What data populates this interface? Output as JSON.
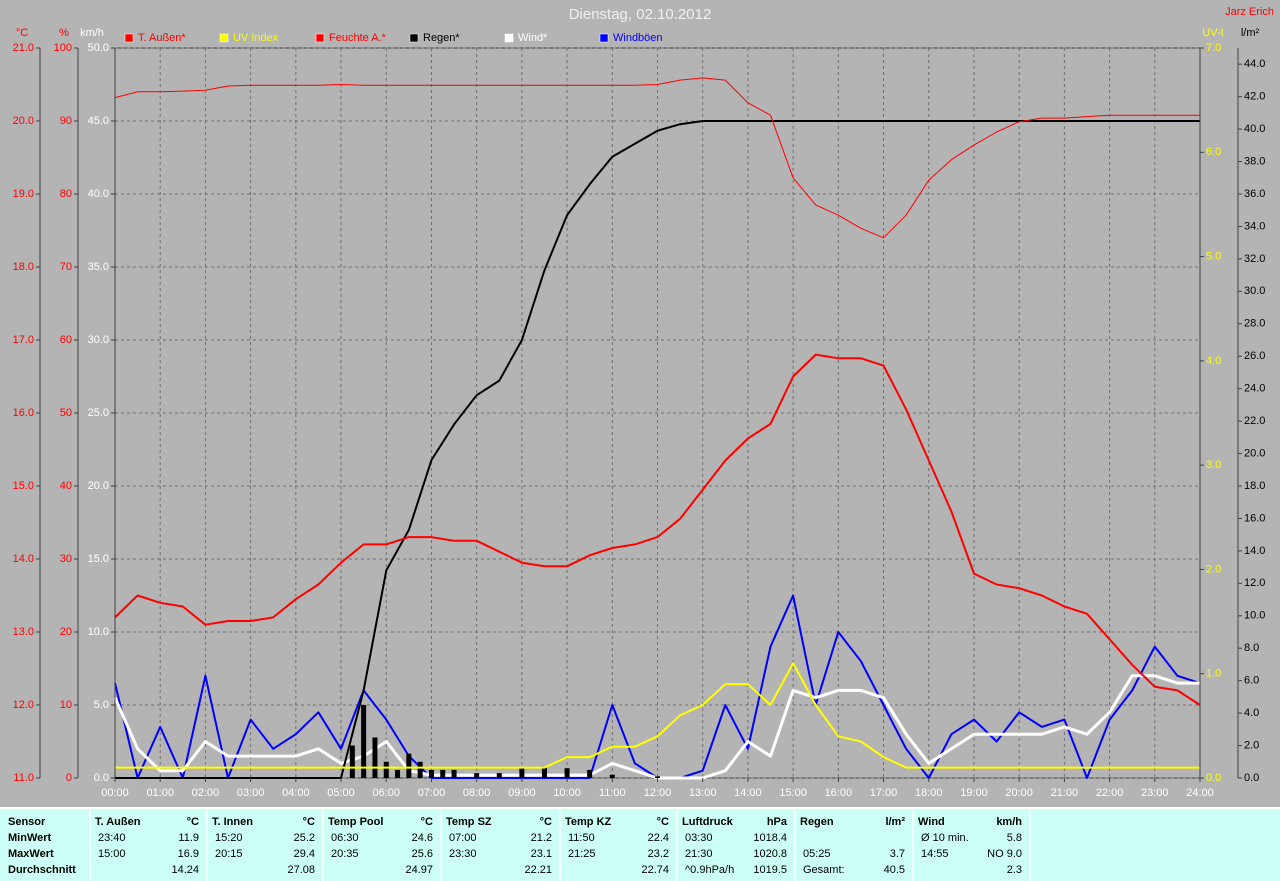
{
  "chart_data": {
    "type": "line",
    "title": "Dienstag, 02.10.2012",
    "author": "Jarz Erich",
    "x": [
      0,
      0.5,
      1,
      1.5,
      2,
      2.5,
      3,
      3.5,
      4,
      4.5,
      5,
      5.5,
      6,
      6.5,
      7,
      7.5,
      8,
      8.5,
      9,
      9.5,
      10,
      10.5,
      11,
      11.5,
      12,
      12.5,
      13,
      13.5,
      14,
      14.5,
      15,
      15.5,
      16,
      16.5,
      17,
      17.5,
      18,
      18.5,
      19,
      19.5,
      20,
      20.5,
      21,
      21.5,
      22,
      22.5,
      23,
      23.5,
      24
    ],
    "xlim": [
      0,
      24
    ],
    "xticks": [
      {
        "value": 0,
        "label": "00:00"
      },
      {
        "value": 1,
        "label": "01:00"
      },
      {
        "value": 2,
        "label": "02:00"
      },
      {
        "value": 3,
        "label": "03:00"
      },
      {
        "value": 4,
        "label": "04:00"
      },
      {
        "value": 5,
        "label": "05:00"
      },
      {
        "value": 6,
        "label": "06:00"
      },
      {
        "value": 7,
        "label": "07:00"
      },
      {
        "value": 8,
        "label": "08:00"
      },
      {
        "value": 9,
        "label": "09:00"
      },
      {
        "value": 10,
        "label": "10:00"
      },
      {
        "value": 11,
        "label": "11:00"
      },
      {
        "value": 12,
        "label": "12:00"
      },
      {
        "value": 13,
        "label": "13:00"
      },
      {
        "value": 14,
        "label": "14:00"
      },
      {
        "value": 15,
        "label": "15:00"
      },
      {
        "value": 16,
        "label": "16:00"
      },
      {
        "value": 17,
        "label": "17:00"
      },
      {
        "value": 18,
        "label": "18:00"
      },
      {
        "value": 19,
        "label": "19:00"
      },
      {
        "value": 20,
        "label": "20:00"
      },
      {
        "value": 21,
        "label": "21:00"
      },
      {
        "value": 22,
        "label": "22:00"
      },
      {
        "value": 23,
        "label": "23:00"
      },
      {
        "value": 24,
        "label": "24:00"
      }
    ],
    "grid": true,
    "axes": {
      "y": {
        "label": "°C",
        "color": "#ff0000",
        "lim": [
          11,
          21
        ],
        "ticks": [
          {
            "value": 11,
            "label": "11.0"
          },
          {
            "value": 12,
            "label": "12.0"
          },
          {
            "value": 13,
            "label": "13.0"
          },
          {
            "value": 14,
            "label": "14.0"
          },
          {
            "value": 15,
            "label": "15.0"
          },
          {
            "value": 16,
            "label": "16.0"
          },
          {
            "value": 17,
            "label": "17.0"
          },
          {
            "value": 18,
            "label": "18.0"
          },
          {
            "value": 19,
            "label": "19.0"
          },
          {
            "value": 20,
            "label": "20.0"
          },
          {
            "value": 21,
            "label": "21.0"
          }
        ]
      },
      "y2": {
        "label": "%",
        "color": "#ff0000",
        "lim": [
          0,
          100
        ],
        "ticks": [
          0,
          10,
          20,
          30,
          40,
          50,
          60,
          70,
          80,
          90,
          100
        ]
      },
      "y3": {
        "label": "km/h",
        "color": "#ffffff",
        "lim": [
          0,
          50
        ],
        "grid": true,
        "ticks": [
          {
            "value": 0,
            "label": "0.0"
          },
          {
            "value": 5,
            "label": "5.0"
          },
          {
            "value": 10,
            "label": "10.0"
          },
          {
            "value": 15,
            "label": "15.0"
          },
          {
            "value": 20,
            "label": "20.0"
          },
          {
            "value": 25,
            "label": "25.0"
          },
          {
            "value": 30,
            "label": "30.0"
          },
          {
            "value": 35,
            "label": "35.0"
          },
          {
            "value": 40,
            "label": "40.0"
          },
          {
            "value": 45,
            "label": "45.0"
          },
          {
            "value": 50,
            "label": "50.0"
          }
        ]
      },
      "y4": {
        "label": "UV-I",
        "color": "#ffff00",
        "lim": [
          0,
          7
        ],
        "ticks": [
          {
            "value": 0,
            "label": "0.0"
          },
          {
            "value": 1,
            "label": "1.0"
          },
          {
            "value": 2,
            "label": "2.0"
          },
          {
            "value": 3,
            "label": "3.0"
          },
          {
            "value": 4,
            "label": "4.0"
          },
          {
            "value": 5,
            "label": "5.0"
          },
          {
            "value": 6,
            "label": "6.0"
          },
          {
            "value": 7,
            "label": "7.0"
          }
        ]
      },
      "y5": {
        "label": "l/m²",
        "color": "#000000",
        "lim": [
          0,
          45
        ],
        "ticks": [
          {
            "value": 0,
            "label": "0.0"
          },
          {
            "value": 2,
            "label": "2.0"
          },
          {
            "value": 4,
            "label": "4.0"
          },
          {
            "value": 6,
            "label": "6.0"
          },
          {
            "value": 8,
            "label": "8.0"
          },
          {
            "value": 10,
            "label": "10.0"
          },
          {
            "value": 12,
            "label": "12.0"
          },
          {
            "value": 14,
            "label": "14.0"
          },
          {
            "value": 16,
            "label": "16.0"
          },
          {
            "value": 18,
            "label": "18.0"
          },
          {
            "value": 20,
            "label": "20.0"
          },
          {
            "value": 22,
            "label": "22.0"
          },
          {
            "value": 24,
            "label": "24.0"
          },
          {
            "value": 26,
            "label": "26.0"
          },
          {
            "value": 28,
            "label": "28.0"
          },
          {
            "value": 30,
            "label": "30.0"
          },
          {
            "value": 32,
            "label": "32.0"
          },
          {
            "value": 34,
            "label": "34.0"
          },
          {
            "value": 36,
            "label": "36.0"
          },
          {
            "value": 38,
            "label": "38.0"
          },
          {
            "value": 40,
            "label": "40.0"
          },
          {
            "value": 42,
            "label": "42.0"
          },
          {
            "value": 44,
            "label": "44.0"
          }
        ]
      }
    },
    "series": [
      {
        "name": "T. Außen*",
        "color": "#ff0000",
        "axis": "y",
        "width": 2,
        "values": [
          13.2,
          13.5,
          13.4,
          13.35,
          13.1,
          13.15,
          13.15,
          13.2,
          13.45,
          13.65,
          13.95,
          14.2,
          14.2,
          14.3,
          14.3,
          14.25,
          14.25,
          14.1,
          13.95,
          13.9,
          13.9,
          14.05,
          14.15,
          14.2,
          14.3,
          14.55,
          14.95,
          15.35,
          15.65,
          15.85,
          16.5,
          16.8,
          16.75,
          16.75,
          16.65,
          16.05,
          15.35,
          14.65,
          13.8,
          13.65,
          13.6,
          13.5,
          13.35,
          13.25,
          12.9,
          12.55,
          12.25,
          12.2,
          12.0
        ]
      },
      {
        "name": "UV Index",
        "color": "#ffff00",
        "axis": "y4",
        "width": 2,
        "values": [
          0.1,
          0.1,
          0.1,
          0.1,
          0.1,
          0.1,
          0.1,
          0.1,
          0.1,
          0.1,
          0.1,
          0.1,
          0.1,
          0.1,
          0.1,
          0.1,
          0.1,
          0.1,
          0.1,
          0.1,
          0.2,
          0.2,
          0.3,
          0.3,
          0.4,
          0.6,
          0.7,
          0.9,
          0.9,
          0.7,
          1.1,
          0.7,
          0.4,
          0.35,
          0.2,
          0.1,
          0.1,
          0.1,
          0.1,
          0.1,
          0.1,
          0.1,
          0.1,
          0.1,
          0.1,
          0.1,
          0.1,
          0.1,
          0.1
        ]
      },
      {
        "name": "Feuchte A.*",
        "color": "#ff0000",
        "axis": "y2",
        "width": 1,
        "values": [
          93.2,
          94,
          94,
          94.1,
          94.2,
          94.8,
          94.9,
          94.9,
          94.9,
          94.9,
          95.0,
          94.9,
          94.9,
          94.9,
          94.9,
          94.9,
          94.9,
          94.9,
          94.9,
          94.9,
          94.9,
          94.9,
          94.9,
          94.9,
          95.0,
          95.6,
          95.9,
          95.6,
          92.5,
          90.8,
          82.2,
          78.5,
          77.1,
          75.3,
          74.0,
          77.1,
          81.9,
          84.7,
          86.7,
          88.5,
          89.9,
          90.4,
          90.4,
          90.6,
          90.8,
          90.8,
          90.8,
          90.8,
          90.8
        ]
      },
      {
        "name": "Regen*",
        "color": "#000000",
        "axis": "y5",
        "width": 2,
        "values": [
          0,
          0,
          0,
          0,
          0,
          0,
          0,
          0,
          0,
          0,
          0,
          5.4,
          12.8,
          15.3,
          19.6,
          21.8,
          23.6,
          24.5,
          27.0,
          31.3,
          34.7,
          36.6,
          38.3,
          39.1,
          39.9,
          40.3,
          40.5,
          40.5,
          40.5,
          40.5,
          40.5,
          40.5,
          40.5,
          40.5,
          40.5,
          40.5,
          40.5,
          40.5,
          40.5,
          40.5,
          40.5,
          40.5,
          40.5,
          40.5,
          40.5,
          40.5,
          40.5,
          40.5,
          40.5
        ],
        "bars": {
          "x": [
            5.25,
            5.5,
            5.75,
            6,
            6.25,
            6.5,
            6.75,
            7,
            7.25,
            7.5,
            8,
            8.5,
            9,
            9.5,
            10,
            10.5,
            11,
            12
          ],
          "values": [
            2,
            4.5,
            2.5,
            1,
            0.5,
            1.5,
            1,
            0.5,
            0.5,
            0.5,
            0.3,
            0.3,
            0.6,
            0.7,
            0.6,
            0.5,
            0.2,
            0.1
          ]
        }
      },
      {
        "name": "Wind*",
        "color": "#ffffff",
        "axis": "y3",
        "width": 3,
        "values": [
          5.5,
          2.0,
          0.5,
          0.5,
          2.5,
          1.5,
          1.5,
          1.5,
          1.5,
          2.0,
          1.0,
          1.5,
          2.5,
          0.5,
          0.2,
          0.2,
          0.2,
          0.2,
          0.2,
          0.2,
          0.2,
          0.2,
          1.0,
          0.5,
          0,
          0,
          0,
          0.5,
          2.5,
          1.5,
          6.0,
          5.5,
          6.0,
          6.0,
          5.5,
          3.0,
          1.0,
          2.0,
          3.0,
          3.0,
          3.0,
          3.0,
          3.5,
          3.0,
          4.5,
          7.0,
          7.0,
          6.5,
          6.5
        ]
      },
      {
        "name": "Windböen",
        "color": "#0000ff",
        "axis": "y3",
        "width": 2,
        "values": [
          6.5,
          0,
          3.5,
          0,
          7,
          0,
          4,
          2,
          3,
          4.5,
          2,
          6,
          4,
          1.5,
          0,
          0,
          0,
          0,
          0,
          0,
          0,
          0,
          5,
          1,
          0,
          0,
          0.5,
          5,
          2,
          9,
          12.5,
          5,
          10,
          8,
          5,
          2,
          0,
          3,
          4,
          2.5,
          4.5,
          3.5,
          4,
          0,
          4,
          6,
          9,
          7,
          6.5
        ]
      }
    ]
  },
  "stats": {
    "row_labels": [
      "Sensor",
      "MinWert",
      "MaxWert",
      "Durchschnitt"
    ],
    "groups": [
      {
        "name": "T. Außen",
        "unit": "°C",
        "rows": [
          [
            "23:40",
            "11.9"
          ],
          [
            "15:00",
            "16.9"
          ],
          [
            null,
            "14.24"
          ]
        ]
      },
      {
        "name": "T. Innen",
        "unit": "°C",
        "rows": [
          [
            "15:20",
            "25.2"
          ],
          [
            "20:15",
            "29.4"
          ],
          [
            null,
            "27.08"
          ]
        ]
      },
      {
        "name": "Temp Pool",
        "unit": "°C",
        "rows": [
          [
            "06:30",
            "24.6"
          ],
          [
            "20:35",
            "25.6"
          ],
          [
            null,
            "24.97"
          ]
        ]
      },
      {
        "name": "Temp SZ",
        "unit": "°C",
        "rows": [
          [
            "07:00",
            "21.2"
          ],
          [
            "23:30",
            "23.1"
          ],
          [
            null,
            "22.21"
          ]
        ]
      },
      {
        "name": "Temp KZ",
        "unit": "°C",
        "rows": [
          [
            "11:50",
            "22.4"
          ],
          [
            "21:25",
            "23.2"
          ],
          [
            null,
            "22.74"
          ]
        ]
      },
      {
        "name": "Luftdruck",
        "unit": "hPa",
        "rows": [
          [
            "03:30",
            "1018.4"
          ],
          [
            "21:30",
            "1020.8"
          ],
          [
            "^0.9hPa/h",
            "1019.5"
          ]
        ]
      },
      {
        "name": "Regen",
        "unit": "l/m²",
        "rows": [
          [
            null,
            null
          ],
          [
            "05:25",
            "3.7"
          ],
          [
            "Gesamt:",
            "40.5"
          ]
        ]
      },
      {
        "name": "Wind",
        "unit": "km/h",
        "rows": [
          [
            "Ø 10 min.",
            "5.8"
          ],
          [
            "14:55",
            "NO 9.0"
          ],
          [
            null,
            "2.3"
          ]
        ]
      }
    ]
  }
}
